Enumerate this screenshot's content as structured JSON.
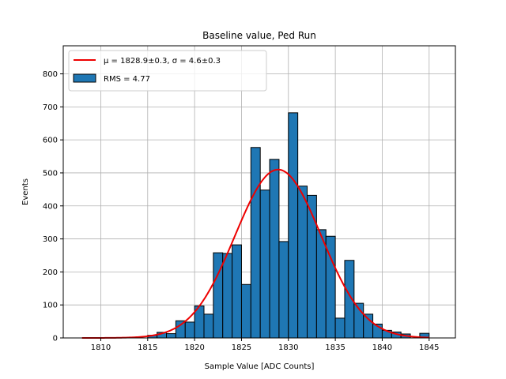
{
  "chart_data": {
    "type": "bar",
    "title": "Baseline value, Ped Run",
    "xlabel": "Sample Value [ADC Counts]",
    "ylabel": "Events",
    "xlim": [
      1806,
      1847.8
    ],
    "ylim": [
      0,
      885
    ],
    "xticks": [
      1810,
      1815,
      1820,
      1825,
      1830,
      1835,
      1840,
      1845
    ],
    "yticks": [
      0,
      100,
      200,
      300,
      400,
      500,
      600,
      700,
      800
    ],
    "grid": true,
    "legend_position": "top-left",
    "histogram": {
      "name": "RMS = 4.77",
      "bin_width": 1,
      "bin_starts": [
        1808,
        1809,
        1810,
        1811,
        1812,
        1813,
        1814,
        1815,
        1816,
        1817,
        1818,
        1819,
        1820,
        1821,
        1822,
        1823,
        1824,
        1825,
        1826,
        1827,
        1828,
        1829,
        1830,
        1831,
        1832,
        1833,
        1834,
        1835,
        1836,
        1837,
        1838,
        1839,
        1840,
        1841,
        1842,
        1843,
        1844
      ],
      "counts": [
        0,
        0,
        0,
        0,
        0,
        0,
        0,
        8,
        17,
        13,
        52,
        48,
        97,
        72,
        258,
        256,
        282,
        162,
        577,
        448,
        541,
        292,
        682,
        460,
        432,
        328,
        308,
        60,
        235,
        105,
        72,
        42,
        23,
        18,
        12,
        0,
        14
      ],
      "color": "#1f77b4",
      "edgecolor": "#000000"
    },
    "fit": {
      "name": "$\\mu=1828.9\\pm0.3$, $\\sigma=4.6\\pm0.3$",
      "legend_label": "μ = 1828.9±0.3, σ = 4.6±0.3",
      "color": "#ee0000",
      "mu": 1828.9,
      "sigma": 4.6,
      "peak": 510,
      "x_range": [
        1808,
        1845
      ]
    }
  }
}
